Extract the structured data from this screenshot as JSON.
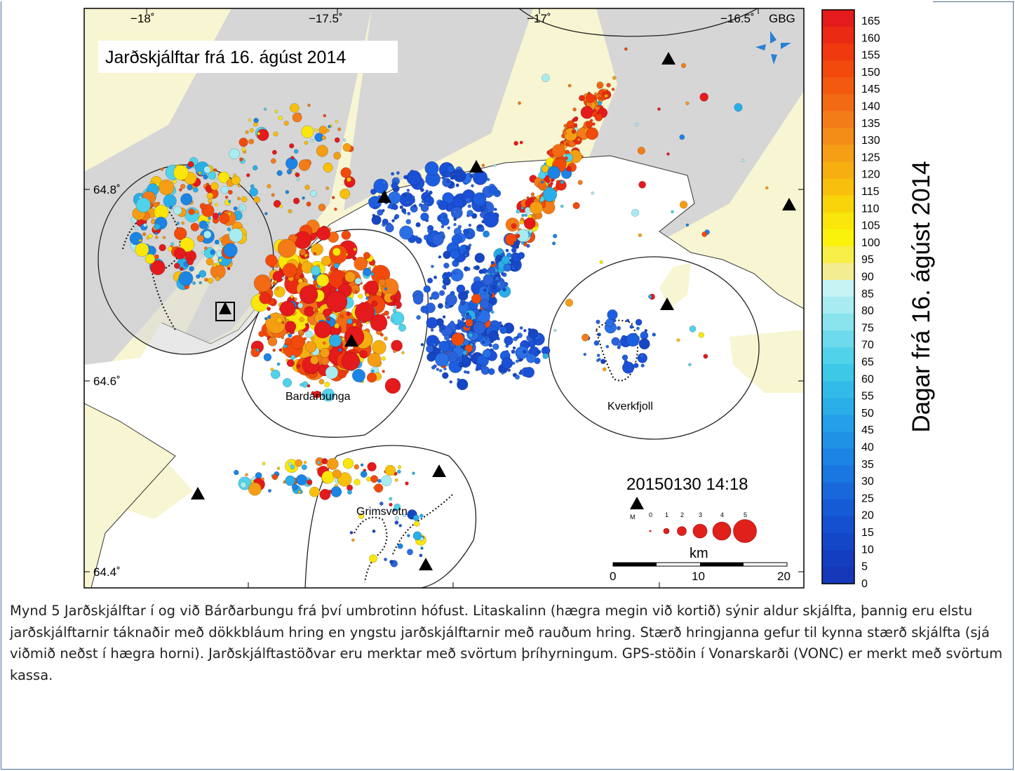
{
  "map": {
    "title": "Jarðskjálftar frá 16. ágúst 2014",
    "timestamp": "20150130 14:18",
    "logo_text": "GBG",
    "lon_ticks": [
      "−18˚",
      "−17.5˚",
      "−17˚",
      "−16.5˚"
    ],
    "lat_ticks": [
      "64.8˚",
      "64.6˚",
      "64.4˚"
    ],
    "volcano_labels": [
      "Bardarbunga",
      "Kverkfjoll",
      "Grimsvotn"
    ],
    "magnitude_legend": {
      "label": "M",
      "values": [
        "0",
        "1",
        "2",
        "3",
        "4",
        "5"
      ]
    },
    "scale_bar": {
      "unit": "km",
      "ticks": [
        "0",
        "10",
        "20"
      ]
    }
  },
  "colorbar": {
    "title": "Dagar frá 16. ágúst 2014",
    "labels": [
      "165",
      "160",
      "155",
      "150",
      "145",
      "140",
      "135",
      "130",
      "125",
      "120",
      "115",
      "110",
      "105",
      "100",
      "95",
      "90",
      "85",
      "80",
      "75",
      "70",
      "65",
      "60",
      "55",
      "50",
      "45",
      "40",
      "35",
      "30",
      "25",
      "20",
      "15",
      "10",
      "5",
      "0"
    ]
  },
  "caption": "Mynd 5 Jarðskjálftar í og við Bárðarbungu frá því umbrotinn hófust. Litaskalinn (hægra megin við kortið) sýnir aldur skjálfta, þannig eru elstu jarðskjálftarnir táknaðir með dökkbláum hring en yngstu jarðskjálftarnir með rauðum hring. Stærð hringjanna gefur til kynna stærð skjálfta (sjá viðmið neðst í hægra horni). Jarðskjálftastöðvar eru merktar með svörtum þríhyrningum. GPS-stöðin í Vonarskarði (VONC) er merkt með svörtum kassa."
}
